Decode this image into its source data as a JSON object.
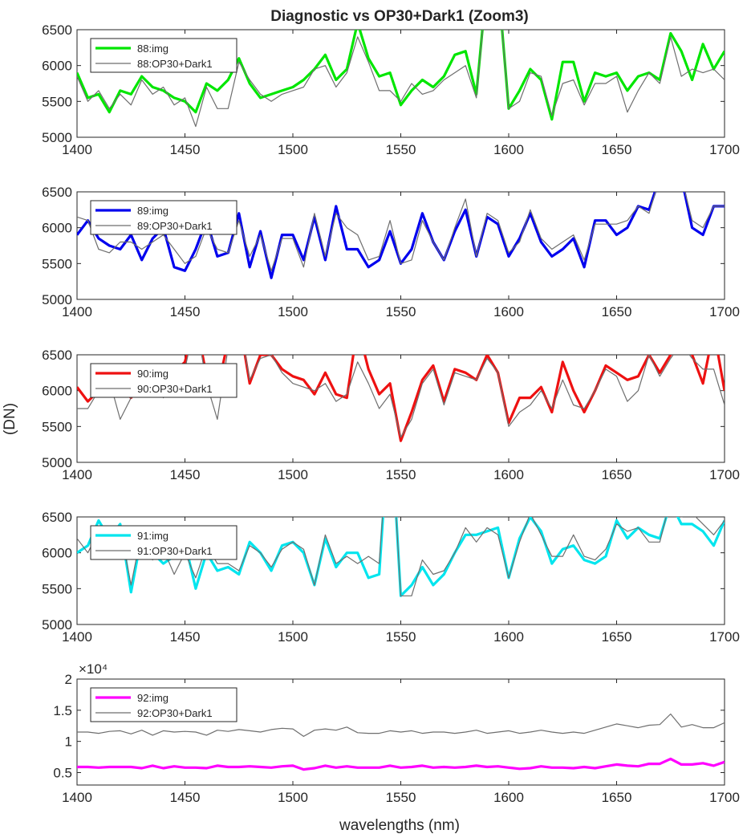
{
  "figure": {
    "title": "Diagnostic vs OP30+Dark1 (Zoom3)",
    "ylabel": "(DN)",
    "xlabel": "wavelengths (nm)"
  },
  "chart_data": [
    {
      "type": "line",
      "xlim": [
        1400,
        1700
      ],
      "ylim": [
        5000,
        6500
      ],
      "xticks": [
        1400,
        1450,
        1500,
        1550,
        1600,
        1650,
        1700
      ],
      "yticks": [
        5000,
        5500,
        6000,
        6500
      ],
      "ytick_labels": [
        "5000",
        "5500",
        "6000",
        "6500"
      ],
      "legend": "top-left",
      "x": [
        1400,
        1405,
        1410,
        1415,
        1420,
        1425,
        1430,
        1435,
        1440,
        1445,
        1450,
        1455,
        1460,
        1465,
        1470,
        1475,
        1480,
        1485,
        1490,
        1495,
        1500,
        1505,
        1510,
        1515,
        1520,
        1525,
        1530,
        1535,
        1540,
        1545,
        1550,
        1555,
        1560,
        1565,
        1570,
        1575,
        1580,
        1585,
        1590,
        1595,
        1600,
        1605,
        1610,
        1615,
        1620,
        1625,
        1630,
        1635,
        1640,
        1645,
        1650,
        1655,
        1660,
        1665,
        1670,
        1675,
        1680,
        1685,
        1690,
        1695,
        1700
      ],
      "series": [
        {
          "name": "88:img",
          "color": "#00e600",
          "width": 3.2,
          "values": [
            5900,
            5550,
            5600,
            5350,
            5650,
            5600,
            5850,
            5700,
            5650,
            5550,
            5500,
            5350,
            5750,
            5650,
            5800,
            6100,
            5750,
            5550,
            5600,
            5650,
            5700,
            5800,
            5950,
            6150,
            5800,
            5950,
            6600,
            6100,
            5850,
            5900,
            5450,
            5650,
            5800,
            5700,
            5850,
            6150,
            6200,
            5600,
            7200,
            7200,
            5400,
            5650,
            5950,
            5800,
            5250,
            6050,
            6050,
            5500,
            5900,
            5850,
            5900,
            5650,
            5850,
            5900,
            5800,
            6450,
            6200,
            5800,
            6300,
            5950,
            6200
          ]
        },
        {
          "name": "88:OP30+Dark1",
          "color": "#6e6e6e",
          "width": 1.2,
          "values": [
            5850,
            5500,
            5650,
            5400,
            5600,
            5450,
            5800,
            5600,
            5700,
            5450,
            5550,
            5150,
            5700,
            5400,
            5400,
            6050,
            5800,
            5600,
            5500,
            5600,
            5650,
            5700,
            5950,
            6000,
            5700,
            5900,
            6400,
            6050,
            5650,
            5650,
            5500,
            5750,
            5600,
            5650,
            5800,
            5900,
            6000,
            5550,
            7200,
            7200,
            5400,
            5500,
            5900,
            5850,
            5300,
            5750,
            5800,
            5450,
            5750,
            5750,
            5850,
            5350,
            5650,
            5900,
            5750,
            6400,
            5850,
            5950,
            5900,
            5950,
            5800
          ]
        }
      ]
    },
    {
      "type": "line",
      "xlim": [
        1400,
        1700
      ],
      "ylim": [
        5000,
        6500
      ],
      "xticks": [
        1400,
        1450,
        1500,
        1550,
        1600,
        1650,
        1700
      ],
      "yticks": [
        5000,
        5500,
        6000,
        6500
      ],
      "ytick_labels": [
        "5000",
        "5500",
        "6000",
        "6500"
      ],
      "legend": "top-left",
      "x": [
        1400,
        1405,
        1410,
        1415,
        1420,
        1425,
        1430,
        1435,
        1440,
        1445,
        1450,
        1455,
        1460,
        1465,
        1470,
        1475,
        1480,
        1485,
        1490,
        1495,
        1500,
        1505,
        1510,
        1515,
        1520,
        1525,
        1530,
        1535,
        1540,
        1545,
        1550,
        1555,
        1560,
        1565,
        1570,
        1575,
        1580,
        1585,
        1590,
        1595,
        1600,
        1605,
        1610,
        1615,
        1620,
        1625,
        1630,
        1635,
        1640,
        1645,
        1650,
        1655,
        1660,
        1665,
        1670,
        1675,
        1680,
        1685,
        1690,
        1695,
        1700
      ],
      "series": [
        {
          "name": "89:img",
          "color": "#0000ee",
          "width": 3.2,
          "values": [
            5900,
            6100,
            5850,
            5750,
            5700,
            5900,
            5550,
            5850,
            6000,
            5450,
            5400,
            5700,
            6100,
            5600,
            5650,
            6200,
            5450,
            5950,
            5300,
            5900,
            5900,
            5550,
            6150,
            5550,
            6300,
            5700,
            5700,
            5450,
            5550,
            5950,
            5500,
            5700,
            6200,
            5800,
            5550,
            5950,
            6250,
            5600,
            6150,
            6050,
            5600,
            5850,
            6200,
            5800,
            5600,
            5700,
            5850,
            5450,
            6100,
            6100,
            5900,
            6000,
            6300,
            6250,
            6700,
            7000,
            6700,
            6000,
            5900,
            6300,
            6300
          ]
        },
        {
          "name": "89:OP30+Dark1",
          "color": "#6e6e6e",
          "width": 1.2,
          "values": [
            6150,
            6100,
            5700,
            5650,
            5800,
            5800,
            5700,
            5800,
            5900,
            5700,
            5500,
            5600,
            6000,
            5700,
            5650,
            6100,
            5600,
            5900,
            5400,
            5850,
            5850,
            5450,
            6200,
            5600,
            6200,
            6000,
            5900,
            5550,
            5600,
            6100,
            5500,
            5550,
            6100,
            5800,
            5550,
            6000,
            6400,
            5600,
            6200,
            6100,
            5650,
            5800,
            6250,
            5850,
            5700,
            5800,
            5900,
            5550,
            6050,
            6050,
            6050,
            6100,
            6300,
            6200,
            6700,
            7000,
            6700,
            6100,
            6000,
            6300,
            6300
          ]
        }
      ]
    },
    {
      "type": "line",
      "xlim": [
        1400,
        1700
      ],
      "ylim": [
        5000,
        6500
      ],
      "xticks": [
        1400,
        1450,
        1500,
        1550,
        1600,
        1650,
        1700
      ],
      "yticks": [
        5000,
        5500,
        6000,
        6500
      ],
      "ytick_labels": [
        "5000",
        "5500",
        "6000",
        "6500"
      ],
      "legend": "top-left",
      "x": [
        1400,
        1405,
        1410,
        1415,
        1420,
        1425,
        1430,
        1435,
        1440,
        1445,
        1450,
        1455,
        1460,
        1465,
        1470,
        1475,
        1480,
        1485,
        1490,
        1495,
        1500,
        1505,
        1510,
        1515,
        1520,
        1525,
        1530,
        1535,
        1540,
        1545,
        1550,
        1555,
        1560,
        1565,
        1570,
        1575,
        1580,
        1585,
        1590,
        1595,
        1600,
        1605,
        1610,
        1615,
        1620,
        1625,
        1630,
        1635,
        1640,
        1645,
        1650,
        1655,
        1660,
        1665,
        1670,
        1675,
        1680,
        1685,
        1690,
        1695,
        1700
      ],
      "series": [
        {
          "name": "90:img",
          "color": "#ee1111",
          "width": 3.2,
          "values": [
            6050,
            5850,
            6000,
            6150,
            6100,
            5900,
            6100,
            6300,
            6000,
            6250,
            6400,
            7000,
            6200,
            6000,
            6700,
            7000,
            6100,
            6500,
            6500,
            6300,
            6200,
            6150,
            5950,
            6250,
            5950,
            5900,
            6900,
            6300,
            5950,
            6100,
            5300,
            5700,
            6150,
            6350,
            5850,
            6300,
            6250,
            6150,
            6500,
            6250,
            5550,
            5900,
            5900,
            6050,
            5700,
            6400,
            6000,
            5700,
            6000,
            6350,
            6250,
            6150,
            6200,
            6500,
            6250,
            6500,
            6900,
            6500,
            6100,
            6850,
            6000
          ]
        },
        {
          "name": "90:OP30+Dark1",
          "color": "#6e6e6e",
          "width": 1.2,
          "values": [
            5750,
            5750,
            6000,
            6150,
            5600,
            5900,
            6050,
            6200,
            5900,
            6200,
            6300,
            7000,
            6100,
            5600,
            6600,
            7000,
            6150,
            6450,
            6500,
            6250,
            6100,
            6050,
            6000,
            6100,
            5850,
            5950,
            6400,
            6100,
            5750,
            5950,
            5350,
            5600,
            6100,
            6300,
            5800,
            6250,
            6200,
            6150,
            6450,
            6250,
            5500,
            5700,
            5800,
            6000,
            5750,
            6150,
            5800,
            5750,
            6000,
            6300,
            6200,
            5850,
            6000,
            6500,
            6200,
            6450,
            6650,
            6450,
            6300,
            6300,
            5800
          ]
        }
      ]
    },
    {
      "type": "line",
      "xlim": [
        1400,
        1700
      ],
      "ylim": [
        5000,
        6500
      ],
      "xticks": [
        1400,
        1450,
        1500,
        1550,
        1600,
        1650,
        1700
      ],
      "yticks": [
        5000,
        5500,
        6000,
        6500
      ],
      "ytick_labels": [
        "5000",
        "5500",
        "6000",
        "6500"
      ],
      "legend": "top-left",
      "x": [
        1400,
        1405,
        1410,
        1415,
        1420,
        1425,
        1430,
        1435,
        1440,
        1445,
        1450,
        1455,
        1460,
        1465,
        1470,
        1475,
        1480,
        1485,
        1490,
        1495,
        1500,
        1505,
        1510,
        1515,
        1520,
        1525,
        1530,
        1535,
        1540,
        1545,
        1550,
        1555,
        1560,
        1565,
        1570,
        1575,
        1580,
        1585,
        1590,
        1595,
        1600,
        1605,
        1610,
        1615,
        1620,
        1625,
        1630,
        1635,
        1640,
        1645,
        1650,
        1655,
        1660,
        1665,
        1670,
        1675,
        1680,
        1685,
        1690,
        1695,
        1700
      ],
      "series": [
        {
          "name": "91:img",
          "color": "#00e5ee",
          "width": 3.2,
          "values": [
            6000,
            6100,
            6450,
            6200,
            6400,
            5450,
            6250,
            6000,
            5850,
            5950,
            6150,
            5500,
            6000,
            5750,
            5800,
            5700,
            6150,
            6000,
            5750,
            6100,
            6150,
            6000,
            5550,
            6200,
            5800,
            6000,
            6000,
            5650,
            5700,
            8000,
            5400,
            5550,
            5800,
            5550,
            5700,
            6000,
            6250,
            6250,
            6300,
            6350,
            5650,
            6200,
            6500,
            6300,
            5850,
            6050,
            6100,
            5900,
            5850,
            5950,
            6450,
            6200,
            6350,
            6250,
            6200,
            6700,
            6400,
            6400,
            6300,
            6100,
            6450
          ]
        },
        {
          "name": "91:OP30+Dark1",
          "color": "#6e6e6e",
          "width": 1.2,
          "values": [
            6200,
            6000,
            6300,
            6100,
            6350,
            5550,
            6300,
            5900,
            6050,
            5700,
            6000,
            5650,
            6100,
            5850,
            5850,
            5750,
            6100,
            6000,
            5800,
            6050,
            6150,
            6050,
            5550,
            6250,
            5850,
            5950,
            5850,
            5950,
            5850,
            8000,
            5400,
            5400,
            5900,
            5700,
            5750,
            6000,
            6350,
            6150,
            6350,
            6250,
            5650,
            6150,
            6550,
            6250,
            5950,
            5950,
            6250,
            5950,
            5900,
            6050,
            6400,
            6300,
            6350,
            6150,
            6150,
            6750,
            6500,
            6550,
            6400,
            6250,
            6450
          ]
        }
      ]
    },
    {
      "type": "line",
      "xlim": [
        1400,
        1700
      ],
      "ylim": [
        3000,
        20000
      ],
      "exponent_label": "×10⁴",
      "xticks": [
        1400,
        1450,
        1500,
        1550,
        1600,
        1650,
        1700
      ],
      "yticks": [
        5000,
        10000,
        15000,
        20000
      ],
      "ytick_labels": [
        "0.5",
        "1",
        "1.5",
        "2"
      ],
      "legend": "top-left",
      "x": [
        1400,
        1405,
        1410,
        1415,
        1420,
        1425,
        1430,
        1435,
        1440,
        1445,
        1450,
        1455,
        1460,
        1465,
        1470,
        1475,
        1480,
        1485,
        1490,
        1495,
        1500,
        1505,
        1510,
        1515,
        1520,
        1525,
        1530,
        1535,
        1540,
        1545,
        1550,
        1555,
        1560,
        1565,
        1570,
        1575,
        1580,
        1585,
        1590,
        1595,
        1600,
        1605,
        1610,
        1615,
        1620,
        1625,
        1630,
        1635,
        1640,
        1645,
        1650,
        1655,
        1660,
        1665,
        1670,
        1675,
        1680,
        1685,
        1690,
        1695,
        1700
      ],
      "series": [
        {
          "name": "92:img",
          "color": "#ff00ff",
          "width": 3.2,
          "values": [
            5900,
            5900,
            5800,
            5900,
            5900,
            5900,
            5700,
            6100,
            5700,
            6000,
            5800,
            5800,
            5700,
            6100,
            5900,
            5900,
            6000,
            5900,
            5800,
            6000,
            6100,
            5500,
            5700,
            6100,
            5800,
            6000,
            5800,
            5800,
            5800,
            6100,
            5800,
            5900,
            6100,
            5800,
            5900,
            5800,
            5900,
            6100,
            5900,
            6000,
            5800,
            5600,
            5700,
            6000,
            5800,
            5800,
            5700,
            5900,
            5700,
            6000,
            6300,
            6100,
            6000,
            6400,
            6400,
            7200,
            6300,
            6300,
            6500,
            6100,
            6700
          ]
        },
        {
          "name": "92:OP30+Dark1",
          "color": "#6e6e6e",
          "width": 1.2,
          "values": [
            11500,
            11500,
            11300,
            11600,
            11700,
            11200,
            11800,
            11000,
            11700,
            11500,
            11600,
            11500,
            11000,
            11800,
            11600,
            11900,
            11700,
            11500,
            11900,
            12100,
            12000,
            10800,
            11800,
            12000,
            11800,
            12300,
            11400,
            11300,
            11300,
            11700,
            11500,
            11700,
            11300,
            11500,
            11500,
            11300,
            11500,
            11800,
            11300,
            11500,
            11700,
            11300,
            11500,
            11800,
            11500,
            11300,
            11500,
            11300,
            11800,
            12300,
            12800,
            12500,
            12200,
            12600,
            12700,
            14400,
            12300,
            12700,
            12200,
            12200,
            13000
          ]
        }
      ]
    }
  ]
}
